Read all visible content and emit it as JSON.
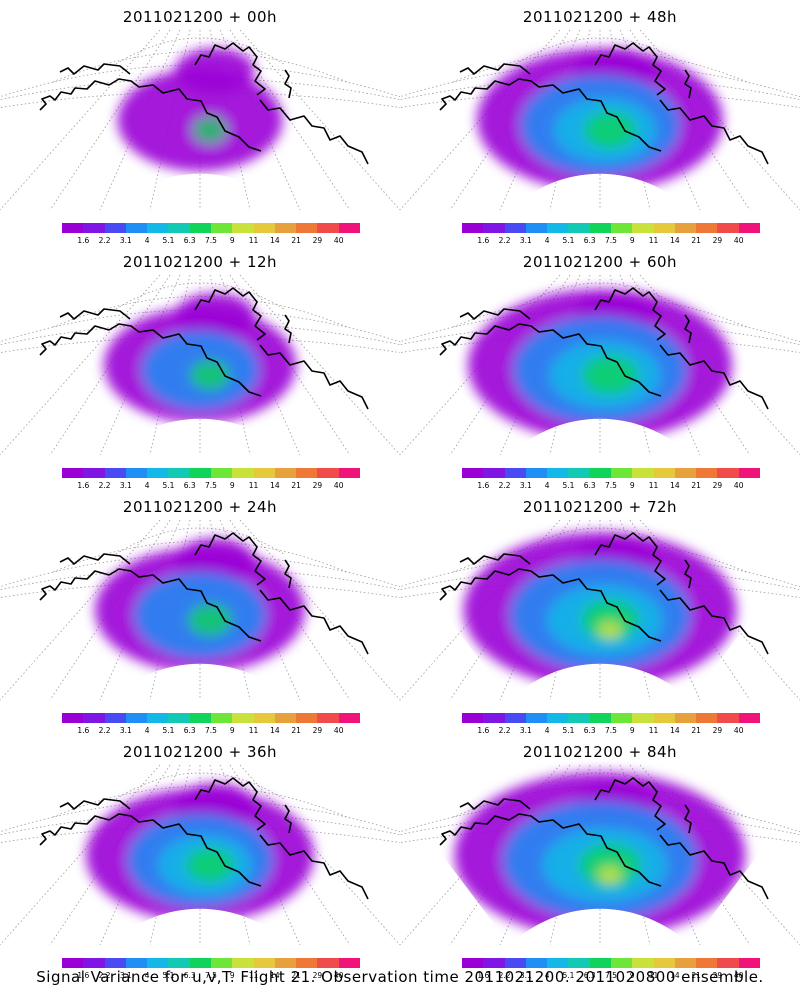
{
  "panels": [
    {
      "title": "2011021200 + 00h"
    },
    {
      "title": "2011021200 + 48h"
    },
    {
      "title": "2011021200 + 12h"
    },
    {
      "title": "2011021200 + 60h"
    },
    {
      "title": "2011021200 + 24h"
    },
    {
      "title": "2011021200 + 72h"
    },
    {
      "title": "2011021200 + 36h"
    },
    {
      "title": "2011021200 + 84h"
    }
  ],
  "colorbar": {
    "colors": [
      "#9a00d6",
      "#7f16e6",
      "#4a4af2",
      "#1f8ff5",
      "#14b8e6",
      "#12c9b4",
      "#10d45a",
      "#6ee637",
      "#c8e23b",
      "#e6c83c",
      "#e6a03c",
      "#f07837",
      "#f04a4a",
      "#f0147a"
    ],
    "labels": [
      "1.6",
      "2.2",
      "3.1",
      "4",
      "5.1",
      "6.3",
      "7.5",
      "9",
      "11",
      "14",
      "21",
      "29",
      "40"
    ]
  },
  "footer": "Signal Variance for u,v,T. Flight 21. Observation time 2011021200. 2011020800 ensemble."
}
